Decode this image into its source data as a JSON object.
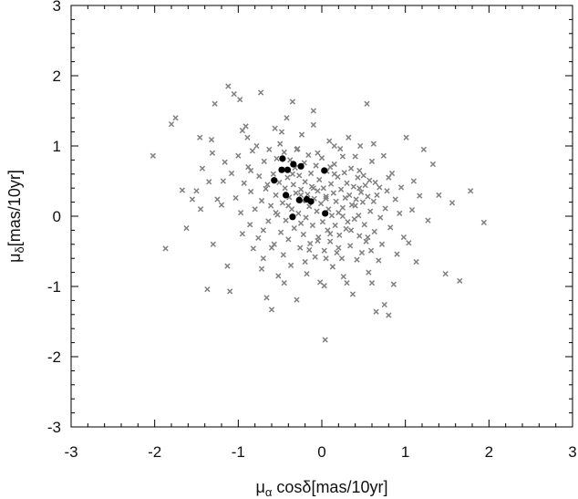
{
  "chart_data": {
    "type": "scatter",
    "title": "",
    "xlabel": {
      "main": "μ",
      "sub": "α",
      "rest": " cosδ[mas/10yr]"
    },
    "ylabel": {
      "main": "μ",
      "sub": "δ",
      "rest": "[mas/10yr]"
    },
    "xlim": [
      -3,
      3
    ],
    "ylim": [
      -3,
      3
    ],
    "x_ticks": [
      "-3",
      "-2",
      "-1",
      "0",
      "1",
      "2",
      "3"
    ],
    "y_ticks": [
      "-3",
      "-2",
      "-1",
      "0",
      "1",
      "2",
      "3"
    ],
    "grid": false,
    "legend": "none",
    "colors": {
      "field": "#808080",
      "members": "#000000",
      "frame": "#000000"
    },
    "series": [
      {
        "marker": "x",
        "points": [
          [
            -2.02,
            0.86
          ],
          [
            -1.87,
            -0.46
          ],
          [
            -1.8,
            1.31
          ],
          [
            -1.75,
            1.4
          ],
          [
            -1.67,
            0.37
          ],
          [
            -1.62,
            -0.17
          ],
          [
            -1.55,
            0.24
          ],
          [
            -1.5,
            0.36
          ],
          [
            -1.46,
            1.12
          ],
          [
            -1.45,
            0.1
          ],
          [
            -1.43,
            0.68
          ],
          [
            -1.37,
            -1.04
          ],
          [
            -1.35,
            0.49
          ],
          [
            -1.32,
            1.09
          ],
          [
            -1.31,
            0.9
          ],
          [
            -1.3,
            -0.4
          ],
          [
            -1.28,
            1.6
          ],
          [
            -1.25,
            0.24
          ],
          [
            -1.2,
            0.16
          ],
          [
            -1.16,
            0.77
          ],
          [
            -1.13,
            -0.71
          ],
          [
            -1.12,
            1.85
          ],
          [
            -1.1,
            -1.07
          ],
          [
            -1.08,
            0.61
          ],
          [
            -1.05,
            1.74
          ],
          [
            -1.03,
            0.26
          ],
          [
            -1.0,
            0.86
          ],
          [
            -0.98,
            1.66
          ],
          [
            -0.97,
            0.05
          ],
          [
            -0.95,
            -0.25
          ],
          [
            -0.93,
            0.47
          ],
          [
            -0.91,
            1.28
          ],
          [
            -0.89,
            1.12
          ],
          [
            -0.88,
            0.7
          ],
          [
            -0.86,
            -0.12
          ],
          [
            -0.85,
            0.35
          ],
          [
            -0.83,
            0.93
          ],
          [
            -0.82,
            -0.46
          ],
          [
            -0.8,
            0.1
          ],
          [
            -0.78,
            1.0
          ],
          [
            -0.76,
            -0.31
          ],
          [
            -0.75,
            0.57
          ],
          [
            -0.73,
            1.76
          ],
          [
            -0.72,
            0.22
          ],
          [
            -0.7,
            -0.6
          ],
          [
            -0.69,
            0.78
          ],
          [
            -0.67,
            0.39
          ],
          [
            -0.66,
            -1.16
          ],
          [
            -0.64,
            -0.07
          ],
          [
            -0.63,
            0.95
          ],
          [
            -0.61,
            0.15
          ],
          [
            -0.6,
            -1.33
          ],
          [
            -0.58,
            0.6
          ],
          [
            -0.57,
            -0.4
          ],
          [
            -0.56,
            1.25
          ],
          [
            -0.55,
            0.3
          ],
          [
            -0.54,
            0.82
          ],
          [
            -0.53,
            0.02
          ],
          [
            -0.52,
            -0.85
          ],
          [
            -0.51,
            0.48
          ],
          [
            -0.5,
            1.03
          ],
          [
            -0.49,
            -0.23
          ],
          [
            -0.48,
            0.66
          ],
          [
            -0.47,
            0.19
          ],
          [
            -0.46,
            -0.55
          ],
          [
            -0.45,
            0.91
          ],
          [
            -0.44,
            0.4
          ],
          [
            -0.43,
            -0.06
          ],
          [
            -0.42,
            1.4
          ],
          [
            -0.41,
            0.55
          ],
          [
            -0.4,
            -0.33
          ],
          [
            -0.39,
            0.27
          ],
          [
            -0.38,
            0.8
          ],
          [
            -0.37,
            -0.7
          ],
          [
            -0.36,
            0.1
          ],
          [
            -0.35,
            1.63
          ],
          [
            -0.34,
            0.45
          ],
          [
            -0.33,
            -0.17
          ],
          [
            -0.32,
            0.69
          ],
          [
            -0.31,
            0.33
          ],
          [
            -0.3,
            -1.19
          ],
          [
            -0.29,
            0.96
          ],
          [
            -0.28,
            0.04
          ],
          [
            -0.27,
            0.58
          ],
          [
            -0.26,
            -0.45
          ],
          [
            -0.25,
            0.38
          ],
          [
            -0.24,
            1.16
          ],
          [
            -0.23,
            0.22
          ],
          [
            -0.22,
            -0.26
          ],
          [
            -0.21,
            0.76
          ],
          [
            -0.2,
            0.49
          ],
          [
            -0.19,
            -0.02
          ],
          [
            -0.18,
            -0.82
          ],
          [
            -0.17,
            0.31
          ],
          [
            -0.16,
            0.87
          ],
          [
            -0.15,
            0.14
          ],
          [
            -0.14,
            -0.39
          ],
          [
            -0.13,
            0.61
          ],
          [
            -0.12,
            0.42
          ],
          [
            -0.11,
            -0.13
          ],
          [
            -0.1,
            1.5
          ],
          [
            -0.09,
            0.25
          ],
          [
            -0.08,
            -0.58
          ],
          [
            -0.07,
            0.72
          ],
          [
            -0.06,
            0.07
          ],
          [
            -0.05,
            0.36
          ],
          [
            -0.04,
            -0.3
          ],
          [
            -0.03,
            0.52
          ],
          [
            -0.02,
            -0.94
          ],
          [
            -0.01,
            0.18
          ],
          [
            0.0,
            0.83
          ],
          [
            0.01,
            -0.08
          ],
          [
            0.02,
            0.4
          ],
          [
            0.03,
            -0.49
          ],
          [
            0.04,
            -1.76
          ],
          [
            0.05,
            0.28
          ],
          [
            0.06,
            0.64
          ],
          [
            0.07,
            -0.2
          ],
          [
            0.08,
            0.1
          ],
          [
            0.09,
            1.07
          ],
          [
            0.1,
            -0.36
          ],
          [
            0.11,
            0.46
          ],
          [
            0.12,
            0.01
          ],
          [
            0.13,
            -0.72
          ],
          [
            0.14,
            0.33
          ],
          [
            0.15,
            0.74
          ],
          [
            0.16,
            -0.13
          ],
          [
            0.17,
            0.21
          ],
          [
            0.18,
            -0.52
          ],
          [
            0.19,
            0.56
          ],
          [
            0.2,
            0.05
          ],
          [
            0.21,
            -0.27
          ],
          [
            0.22,
            0.96
          ],
          [
            0.23,
            0.38
          ],
          [
            0.24,
            -0.6
          ],
          [
            0.25,
            0.12
          ],
          [
            0.26,
            -0.86
          ],
          [
            0.27,
            0.62
          ],
          [
            0.28,
            0.26
          ],
          [
            0.29,
            -0.18
          ],
          [
            0.3,
            0.47
          ],
          [
            0.31,
            -0.08
          ],
          [
            0.32,
            1.12
          ],
          [
            0.33,
            0.3
          ],
          [
            0.34,
            -0.42
          ],
          [
            0.35,
            0.68
          ],
          [
            0.36,
            0.16
          ],
          [
            0.37,
            -1.11
          ],
          [
            0.38,
            0.42
          ],
          [
            0.39,
            -0.04
          ],
          [
            0.4,
            0.85
          ],
          [
            0.41,
            0.24
          ],
          [
            0.42,
            -0.62
          ],
          [
            0.43,
            0.55
          ],
          [
            0.44,
            0.01
          ],
          [
            0.45,
            -0.28
          ],
          [
            0.46,
            1.0
          ],
          [
            0.47,
            0.34
          ],
          [
            0.48,
            -0.52
          ],
          [
            0.49,
            0.2
          ],
          [
            0.5,
            0.58
          ],
          [
            0.51,
            -0.12
          ],
          [
            0.52,
            0.44
          ],
          [
            0.53,
            -0.36
          ],
          [
            0.54,
            1.6
          ],
          [
            0.55,
            0.28
          ],
          [
            0.56,
            -0.8
          ],
          [
            0.57,
            0.51
          ],
          [
            0.58,
            0.07
          ],
          [
            0.59,
            -0.49
          ],
          [
            0.6,
            0.78
          ],
          [
            0.62,
            0.21
          ],
          [
            0.63,
            -0.22
          ],
          [
            0.64,
            0.48
          ],
          [
            0.65,
            -1.36
          ],
          [
            0.66,
            0.3
          ],
          [
            0.68,
            -0.63
          ],
          [
            0.69,
            0.41
          ],
          [
            0.7,
            -0.02
          ],
          [
            0.72,
            -0.4
          ],
          [
            0.74,
            0.86
          ],
          [
            0.75,
            -1.26
          ],
          [
            0.76,
            0.11
          ],
          [
            0.78,
            0.36
          ],
          [
            0.8,
            -1.41
          ],
          [
            0.82,
            -0.16
          ],
          [
            0.84,
            0.61
          ],
          [
            0.86,
            -0.97
          ],
          [
            0.88,
            0.24
          ],
          [
            0.9,
            -0.54
          ],
          [
            0.93,
            0.04
          ],
          [
            0.95,
            0.41
          ],
          [
            0.98,
            -0.3
          ],
          [
            1.01,
            1.12
          ],
          [
            1.04,
            -0.38
          ],
          [
            1.08,
            0.09
          ],
          [
            1.1,
            0.5
          ],
          [
            1.13,
            -0.65
          ],
          [
            1.17,
            0.29
          ],
          [
            1.22,
            0.95
          ],
          [
            1.27,
            -0.06
          ],
          [
            1.33,
            0.74
          ],
          [
            1.4,
            0.3
          ],
          [
            1.48,
            -0.82
          ],
          [
            1.56,
            0.19
          ],
          [
            1.65,
            -0.92
          ],
          [
            1.78,
            0.36
          ],
          [
            1.94,
            -0.09
          ],
          [
            -1.18,
            0.5
          ],
          [
            -0.72,
            -0.75
          ],
          [
            -0.48,
            1.2
          ],
          [
            -0.1,
            1.3
          ],
          [
            0.15,
            1.0
          ],
          [
            0.3,
            -0.95
          ],
          [
            0.6,
            -0.95
          ],
          [
            0.8,
            0.55
          ],
          [
            -0.45,
            -0.95
          ],
          [
            -0.2,
            -0.65
          ],
          [
            0.05,
            -0.6
          ],
          [
            -0.65,
            0.45
          ],
          [
            -0.85,
            0.65
          ],
          [
            0.45,
            0.65
          ],
          [
            0.25,
            0.85
          ],
          [
            -0.3,
            0.95
          ],
          [
            -0.55,
            0.05
          ],
          [
            0.1,
            -0.25
          ],
          [
            0.35,
            -0.2
          ],
          [
            -0.15,
            -0.48
          ],
          [
            -0.95,
            1.22
          ],
          [
            0.62,
            1.03
          ],
          [
            0.03,
            -0.99
          ],
          [
            -0.7,
            -0.2
          ],
          [
            -0.05,
            0.9
          ],
          [
            0.15,
            0.6
          ],
          [
            -0.25,
            -0.1
          ],
          [
            0.05,
            0.25
          ],
          [
            -0.4,
            0.15
          ],
          [
            0.4,
            0.15
          ],
          [
            -0.1,
            0.4
          ],
          [
            0.2,
            -0.45
          ],
          [
            -0.6,
            -0.45
          ],
          [
            0.55,
            -0.3
          ],
          [
            -0.35,
            0.6
          ],
          [
            0.25,
            0.0
          ],
          [
            -0.05,
            -0.35
          ],
          [
            0.45,
            0.4
          ],
          [
            -0.25,
            0.3
          ],
          [
            0.1,
            0.7
          ]
        ]
      },
      {
        "marker": "dot",
        "points": [
          [
            -0.47,
            0.82
          ],
          [
            -0.48,
            0.66
          ],
          [
            -0.41,
            0.66
          ],
          [
            -0.34,
            0.74
          ],
          [
            -0.25,
            0.71
          ],
          [
            -0.57,
            0.51
          ],
          [
            -0.43,
            0.3
          ],
          [
            -0.27,
            0.23
          ],
          [
            -0.18,
            0.24
          ],
          [
            -0.13,
            0.21
          ],
          [
            0.03,
            0.65
          ],
          [
            -0.35,
            -0.01
          ],
          [
            0.04,
            0.04
          ]
        ]
      }
    ]
  }
}
